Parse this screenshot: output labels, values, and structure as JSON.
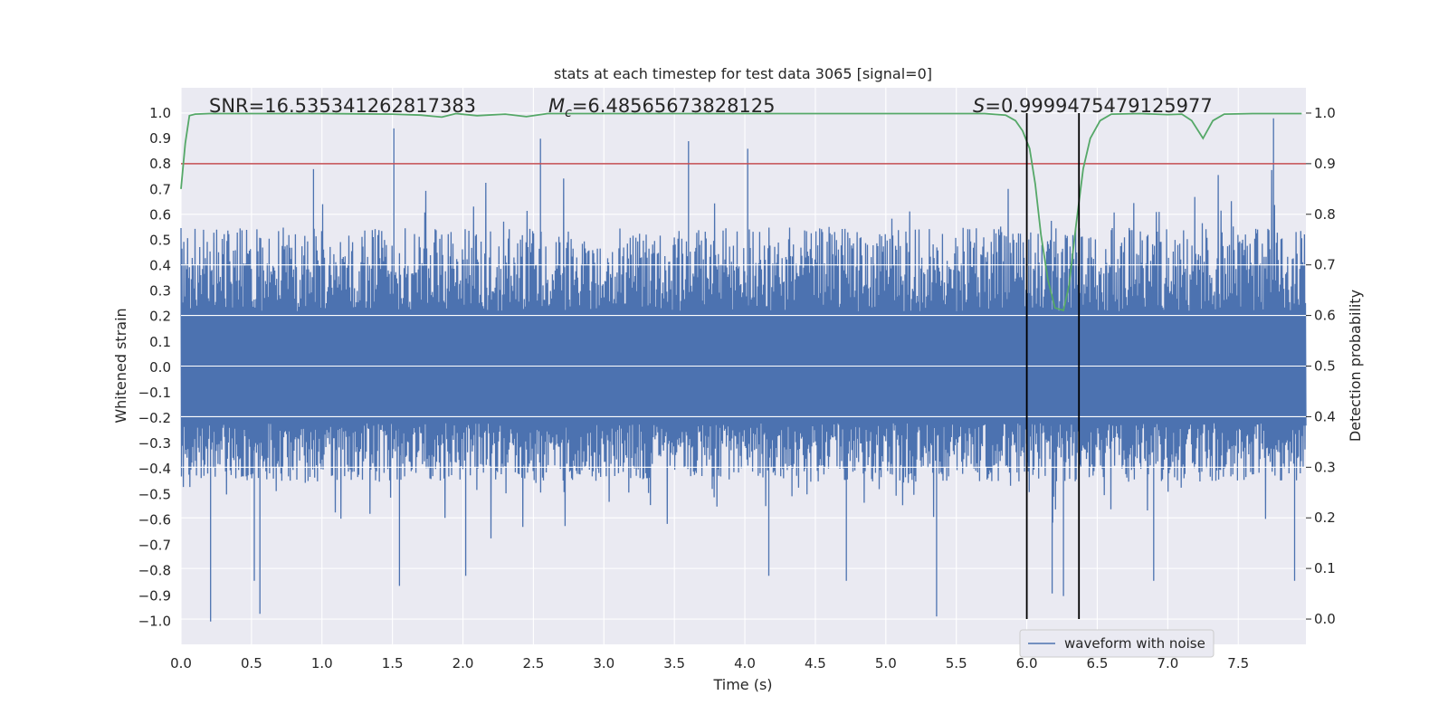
{
  "chart_data": {
    "type": "line",
    "title": "stats at each timestep for test data 3065 [signal=0]",
    "xlabel": "Time (s)",
    "ylabel": "Whitened strain",
    "y2label": "Detection probability",
    "xlim": [
      0.0,
      7.98
    ],
    "ylim": [
      -1.09,
      1.1
    ],
    "y2lim": [
      -0.05,
      1.05
    ],
    "x_ticks": [
      "0.0",
      "0.5",
      "1.0",
      "1.5",
      "2.0",
      "2.5",
      "3.0",
      "3.5",
      "4.0",
      "4.5",
      "5.0",
      "5.5",
      "6.0",
      "6.5",
      "7.0",
      "7.5"
    ],
    "y_ticks": [
      "1.0",
      "0.9",
      "0.8",
      "0.7",
      "0.6",
      "0.5",
      "0.4",
      "0.3",
      "0.2",
      "0.1",
      "0.0",
      "−0.1",
      "−0.2",
      "−0.3",
      "−0.4",
      "−0.5",
      "−0.6",
      "−0.7",
      "−0.8",
      "−0.9",
      "−1.0"
    ],
    "y2_ticks": [
      "1.0",
      "0.9",
      "0.8",
      "0.7",
      "0.6",
      "0.5",
      "0.4",
      "0.3",
      "0.2",
      "0.1",
      "0.0"
    ],
    "annotations": {
      "snr": "SNR=16.535341262817383",
      "mc_symbol": "M",
      "mc_sub": "c",
      "mc_value": "=6.48565673828125",
      "s_symbol": "S",
      "s_value": "=0.9999475479125977"
    },
    "legend": {
      "label": "waveform with noise",
      "placement": "lower-right"
    },
    "threshold": {
      "value": 0.9,
      "axis": "y2",
      "color": "#c44e52"
    },
    "vlines": [
      6.0,
      6.37
    ],
    "waveform": {
      "name": "waveform with noise",
      "color": "#4c72b0",
      "x_range": [
        0.0,
        7.98
      ],
      "samples": 2400,
      "typical_envelope": [
        -0.45,
        0.55
      ],
      "peaks": [
        {
          "x": 0.21,
          "y": -1.0
        },
        {
          "x": 0.56,
          "y": -0.97
        },
        {
          "x": 0.52,
          "y": -0.84
        },
        {
          "x": 1.51,
          "y": 0.94
        },
        {
          "x": 1.55,
          "y": -0.86
        },
        {
          "x": 2.55,
          "y": 0.9
        },
        {
          "x": 3.6,
          "y": 0.89
        },
        {
          "x": 4.02,
          "y": 0.86
        },
        {
          "x": 4.17,
          "y": -0.82
        },
        {
          "x": 4.72,
          "y": -0.84
        },
        {
          "x": 5.36,
          "y": -0.98
        },
        {
          "x": 6.18,
          "y": -0.89
        },
        {
          "x": 6.26,
          "y": -0.9
        },
        {
          "x": 6.9,
          "y": -0.84
        },
        {
          "x": 7.75,
          "y": 0.98
        },
        {
          "x": 7.9,
          "y": -0.84
        },
        {
          "x": 2.02,
          "y": -0.82
        },
        {
          "x": 0.94,
          "y": 0.78
        }
      ]
    },
    "probability": {
      "name": "detection probability",
      "color": "#55a868",
      "x": [
        0.0,
        0.03,
        0.06,
        0.1,
        0.2,
        0.5,
        1.0,
        1.5,
        1.7,
        1.85,
        1.95,
        2.1,
        2.3,
        2.45,
        2.6,
        3.0,
        4.0,
        5.0,
        5.7,
        5.85,
        5.92,
        5.97,
        6.02,
        6.06,
        6.1,
        6.15,
        6.2,
        6.26,
        6.3,
        6.35,
        6.4,
        6.45,
        6.52,
        6.6,
        6.8,
        7.0,
        7.1,
        7.17,
        7.25,
        7.32,
        7.4,
        7.6,
        7.95
      ],
      "y": [
        0.85,
        0.94,
        0.995,
        0.998,
        0.999,
        0.999,
        0.999,
        0.998,
        0.996,
        0.992,
        0.999,
        0.995,
        0.998,
        0.993,
        0.999,
        0.999,
        0.999,
        0.999,
        0.999,
        0.996,
        0.985,
        0.965,
        0.93,
        0.86,
        0.76,
        0.67,
        0.615,
        0.61,
        0.66,
        0.78,
        0.89,
        0.95,
        0.985,
        0.998,
        0.999,
        0.997,
        0.998,
        0.985,
        0.95,
        0.985,
        0.998,
        0.999,
        0.999
      ]
    }
  }
}
